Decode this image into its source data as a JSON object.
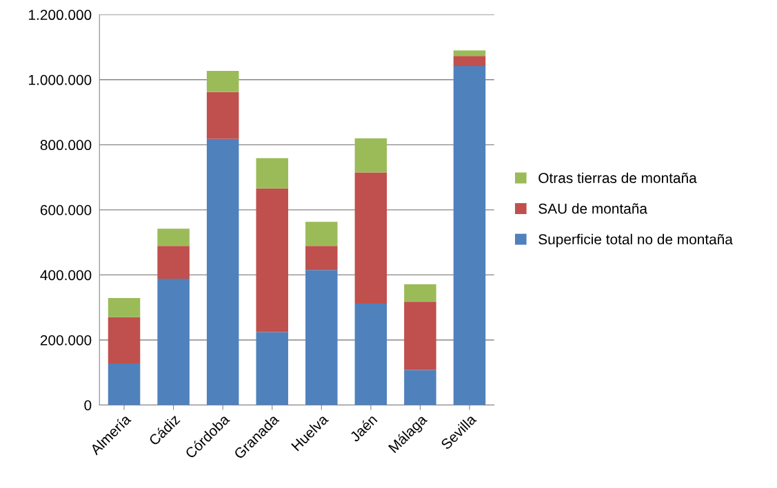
{
  "chart_data": {
    "type": "bar",
    "stacked": true,
    "categories": [
      "Almería",
      "Cádiz",
      "Córdoba",
      "Granada",
      "Huelva",
      "Jaén",
      "Málaga",
      "Sevilla"
    ],
    "series": [
      {
        "name": "Superficie total no de montaña",
        "color": "#4f81bd",
        "values": [
          128000,
          388000,
          818000,
          224000,
          415000,
          312000,
          108000,
          1042000
        ]
      },
      {
        "name": "SAU de montaña",
        "color": "#c0504d",
        "values": [
          142000,
          101000,
          144000,
          442000,
          74000,
          403000,
          210000,
          31000
        ]
      },
      {
        "name": "Otras tierras de montaña",
        "color": "#9bbb59",
        "values": [
          59000,
          53000,
          65000,
          93000,
          74000,
          105000,
          53000,
          17000
        ]
      }
    ],
    "ylim": [
      0,
      1200000
    ],
    "yticks": [
      0,
      {
        "value": 200000,
        "label": "200.000"
      },
      {
        "value": 400000,
        "label": "400.000"
      },
      {
        "value": 600000,
        "label": "600.000"
      },
      {
        "value": 800000,
        "label": "800.000"
      },
      {
        "value": 1000000,
        "label": "1.000.000"
      },
      {
        "value": 1200000,
        "label": "1.200.000"
      }
    ],
    "grid": "y",
    "legend": "right"
  }
}
